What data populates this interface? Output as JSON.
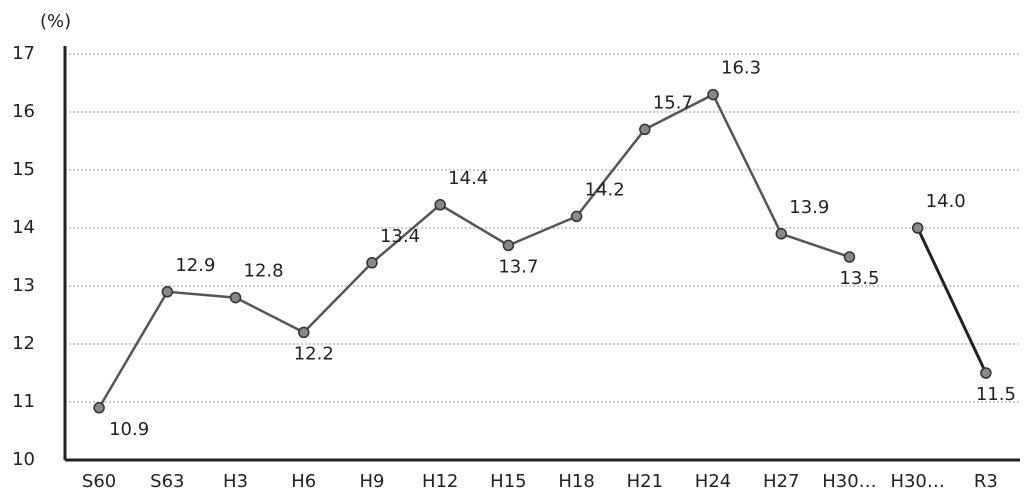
{
  "chart_data": {
    "type": "line",
    "y_label": "(%)",
    "categories": [
      "S60",
      "S63",
      "H3",
      "H6",
      "H9",
      "H12",
      "H15",
      "H18",
      "H21",
      "H24",
      "H27",
      "H30…",
      "H30…",
      "R3"
    ],
    "series": [
      {
        "color": "#555555",
        "values": [
          10.9,
          12.9,
          12.8,
          12.2,
          13.4,
          14.4,
          13.7,
          14.2,
          15.7,
          16.3,
          13.9,
          13.5,
          null,
          null
        ],
        "value_labels": [
          "10.9",
          "12.9",
          "12.8",
          "12.2",
          "13.4",
          "14.4",
          "13.7",
          "14.2",
          "15.7",
          "16.3",
          "13.9",
          "13.5",
          null,
          null
        ]
      },
      {
        "color": "#222222",
        "values": [
          null,
          null,
          null,
          null,
          null,
          null,
          null,
          null,
          null,
          null,
          null,
          null,
          14.0,
          11.5
        ],
        "value_labels": [
          null,
          null,
          null,
          null,
          null,
          null,
          null,
          null,
          null,
          null,
          null,
          null,
          "14.0",
          "11.5"
        ]
      }
    ],
    "ylim": [
      10,
      17
    ],
    "yticks": [
      10,
      11,
      12,
      13,
      14,
      15,
      16,
      17
    ],
    "grid": true
  }
}
